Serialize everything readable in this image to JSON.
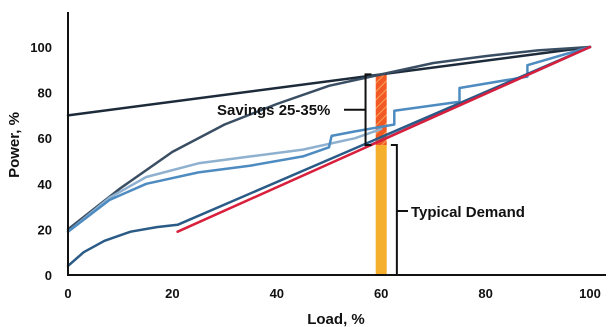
{
  "chart_data": {
    "type": "line",
    "xlabel": "Load, %",
    "ylabel": "Power, %",
    "xlim": [
      0,
      100
    ],
    "ylim": [
      0,
      100
    ],
    "x_ticks": [
      "0",
      "20",
      "40",
      "60",
      "80",
      "100"
    ],
    "y_ticks": [
      "0",
      "20",
      "40",
      "60",
      "80",
      "100"
    ],
    "grid": false,
    "legend": "none",
    "series": [
      {
        "color": "#1c2a3a",
        "points": [
          [
            0,
            70
          ],
          [
            100,
            100
          ]
        ]
      },
      {
        "color": "#3a4e63",
        "points": [
          [
            0,
            20
          ],
          [
            10,
            38
          ],
          [
            20,
            54
          ],
          [
            30,
            66
          ],
          [
            40,
            75
          ],
          [
            50,
            83
          ],
          [
            60,
            88
          ],
          [
            70,
            93
          ],
          [
            80,
            96
          ],
          [
            90,
            98.5
          ],
          [
            100,
            100
          ]
        ]
      },
      {
        "color": "#8fb1cf",
        "points": [
          [
            0,
            19
          ],
          [
            8,
            34
          ],
          [
            15,
            43
          ],
          [
            25,
            49
          ],
          [
            35,
            52
          ],
          [
            45,
            55
          ],
          [
            55,
            60
          ],
          [
            60,
            64
          ]
        ]
      },
      {
        "color": "#4d8bc0",
        "points": [
          [
            0,
            19
          ],
          [
            8,
            33
          ],
          [
            15,
            40
          ],
          [
            25,
            45
          ],
          [
            35,
            48
          ],
          [
            45,
            52
          ],
          [
            50,
            56
          ],
          [
            50.5,
            61
          ],
          [
            55,
            63
          ],
          [
            62.5,
            66
          ],
          [
            62.5,
            72
          ],
          [
            75,
            76
          ],
          [
            75,
            82
          ],
          [
            88,
            87
          ],
          [
            88,
            92
          ],
          [
            100,
            100
          ]
        ]
      },
      {
        "color": "#2a5a86",
        "points": [
          [
            0,
            4
          ],
          [
            3,
            10
          ],
          [
            7,
            15
          ],
          [
            12,
            19
          ],
          [
            17,
            21
          ],
          [
            21,
            22
          ],
          [
            100,
            100
          ]
        ]
      },
      {
        "color": "#2a4fa3",
        "points": [
          [
            57,
            56
          ],
          [
            100,
            100
          ]
        ]
      },
      {
        "color": "#d81f3c",
        "points": [
          [
            21,
            19
          ],
          [
            100,
            100
          ]
        ]
      }
    ],
    "annotations": [
      {
        "text": "Savings 25-35%",
        "from": 57,
        "to": 88,
        "x": 57
      },
      {
        "text": "Typical Demand",
        "from": 0,
        "to": 57,
        "x": 63
      }
    ],
    "bars": [
      {
        "name": "demand",
        "x": 60,
        "from": 0,
        "to": 57,
        "color": "#f6ae2d"
      },
      {
        "name": "savings",
        "x": 60,
        "from": 57,
        "to": 88,
        "color": "#f15a22"
      }
    ]
  }
}
